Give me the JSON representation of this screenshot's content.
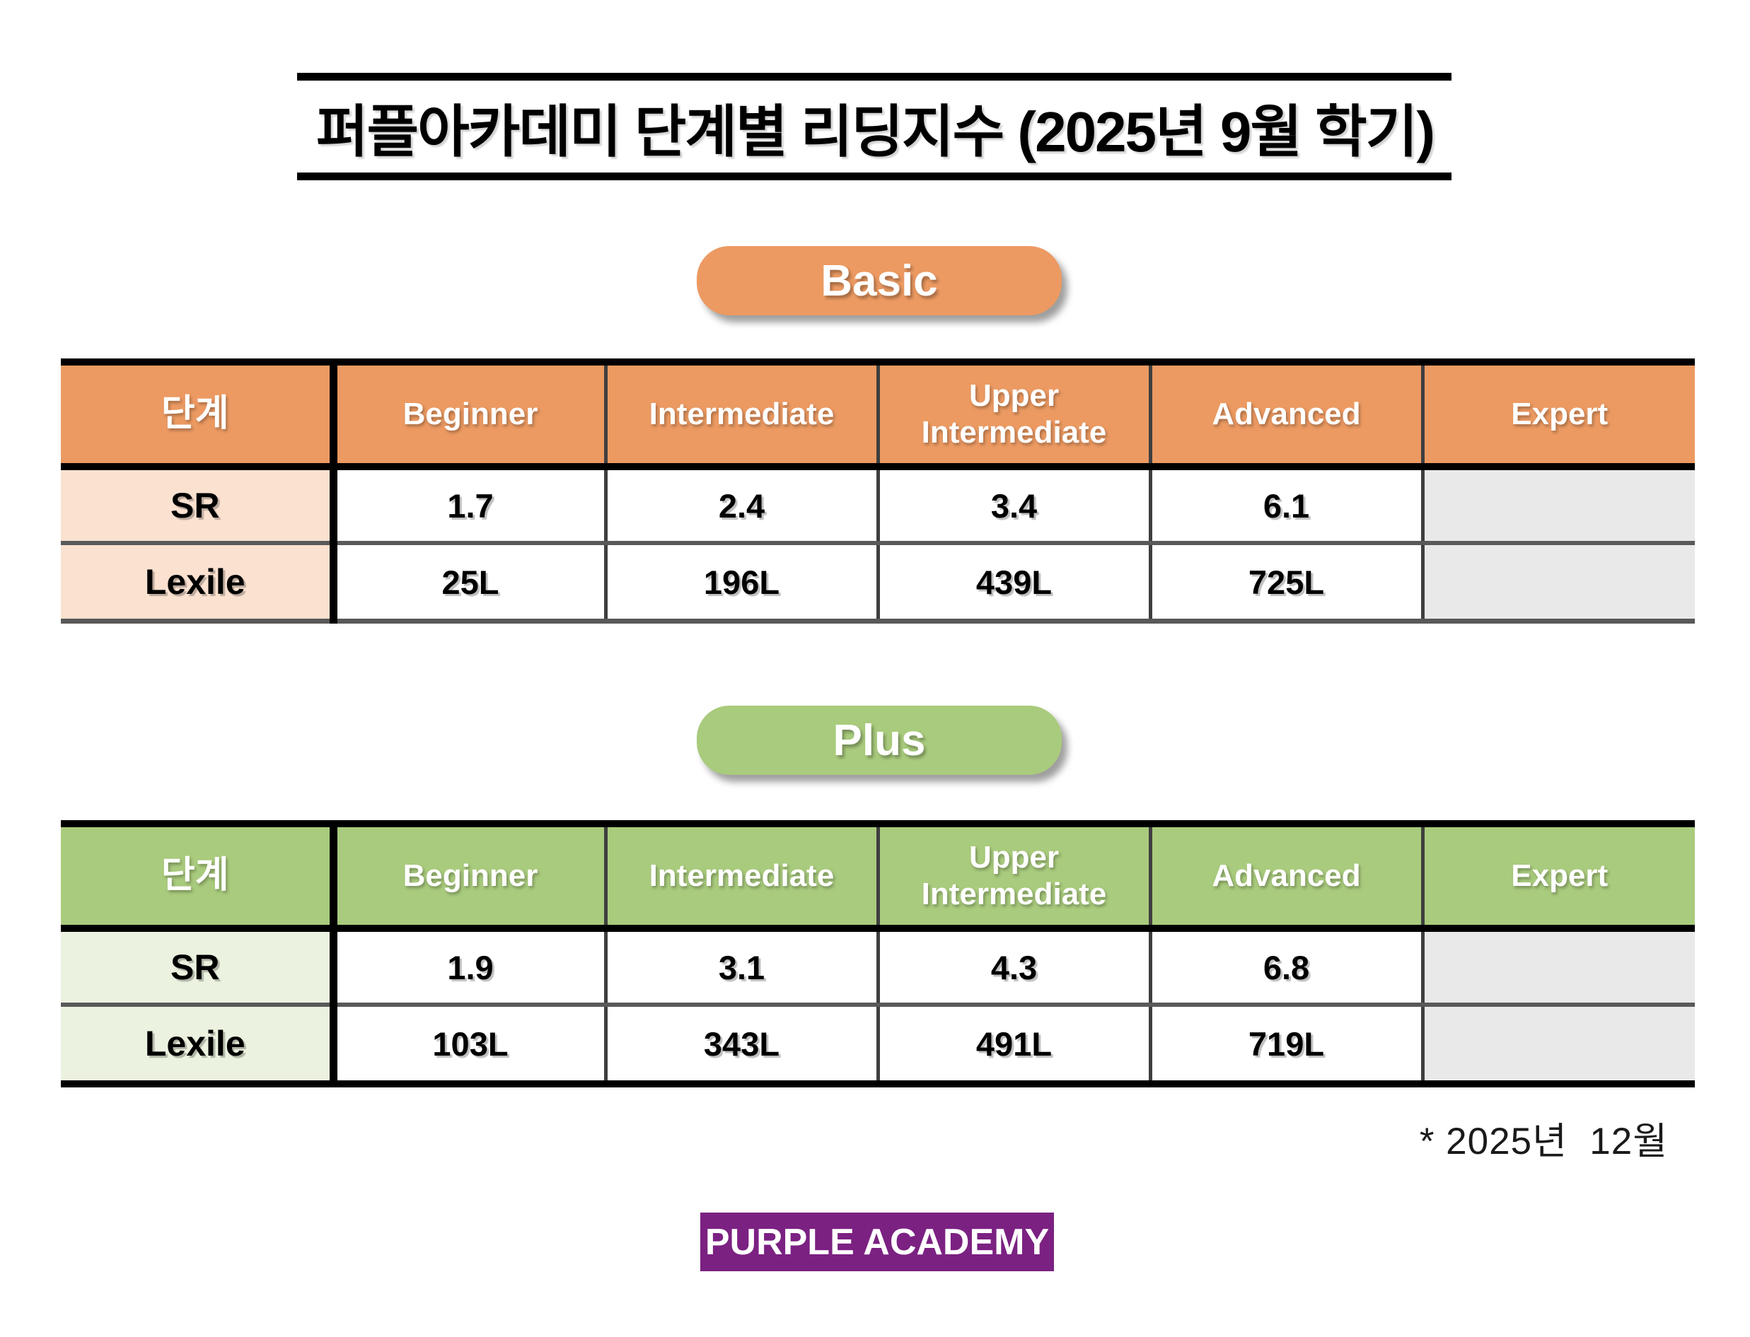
{
  "title": "퍼플아카데미 단계별 리딩지수 (2025년 9월 학기)",
  "basic": {
    "badge_label": "Basic",
    "accent_color": "#EC9A62",
    "label_bg_color": "#FAE1D0",
    "empty_bg_color": "#E9E9E9",
    "header": [
      "단계",
      "Beginner",
      "Intermediate",
      "Upper Intermediate",
      "Advanced",
      "Expert"
    ],
    "rows": [
      {
        "label": "SR",
        "values": [
          "1.7",
          "2.4",
          "3.4",
          "6.1",
          ""
        ]
      },
      {
        "label": "Lexile",
        "values": [
          "25L",
          "196L",
          "439L",
          "725L",
          ""
        ]
      }
    ]
  },
  "plus": {
    "badge_label": "Plus",
    "accent_color": "#A9CB7D",
    "label_bg_color": "#EBF2DF",
    "empty_bg_color": "#E9E9E9",
    "header": [
      "단계",
      "Beginner",
      "Intermediate",
      "Upper Intermediate",
      "Advanced",
      "Expert"
    ],
    "rows": [
      {
        "label": "SR",
        "values": [
          "1.9",
          "3.1",
          "4.3",
          "6.8",
          ""
        ]
      },
      {
        "label": "Lexile",
        "values": [
          "103L",
          "343L",
          "491L",
          "719L",
          ""
        ]
      }
    ]
  },
  "footnote": "* 2025년  12월",
  "logo": {
    "text": "PURPLE ACADEMY",
    "bg_color": "#7B2182"
  }
}
